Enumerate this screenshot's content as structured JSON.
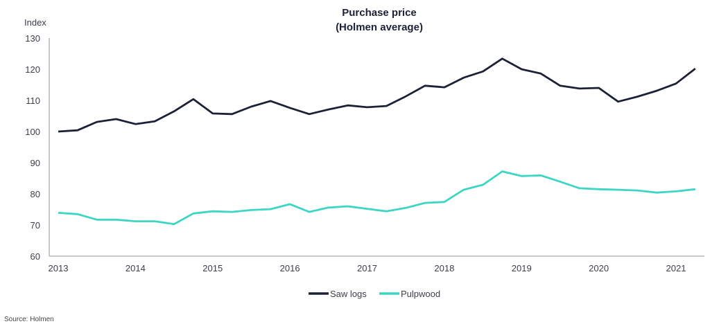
{
  "chart_data": {
    "type": "line",
    "title": "Purchase price",
    "subtitle": "(Holmen average)",
    "ylabel": "Index",
    "xlabel": "",
    "ylim": [
      60,
      130
    ],
    "yticks": [
      60,
      70,
      80,
      90,
      100,
      110,
      120,
      130
    ],
    "xlim": [
      2013,
      2021.5
    ],
    "xticks": [
      "2013",
      "2014",
      "2015",
      "2016",
      "2017",
      "2018",
      "2019",
      "2020",
      "2021"
    ],
    "x": [
      2013.0,
      2013.25,
      2013.5,
      2013.75,
      2014.0,
      2014.25,
      2014.5,
      2014.75,
      2015.0,
      2015.25,
      2015.5,
      2015.75,
      2016.0,
      2016.25,
      2016.5,
      2016.75,
      2017.0,
      2017.25,
      2017.5,
      2017.75,
      2018.0,
      2018.25,
      2018.5,
      2018.75,
      2019.0,
      2019.25,
      2019.5,
      2019.75,
      2020.0,
      2020.25,
      2020.5,
      2020.75,
      2021.0,
      2021.25
    ],
    "grid": false,
    "legend_position": "bottom-center",
    "series": [
      {
        "name": "Saw logs",
        "color": "#1c2136",
        "values": [
          100.0,
          100.4,
          103.1,
          104.0,
          102.4,
          103.3,
          106.5,
          110.4,
          105.8,
          105.6,
          108.0,
          109.8,
          107.6,
          105.6,
          107.1,
          108.4,
          107.8,
          108.2,
          111.3,
          114.7,
          114.2,
          117.3,
          119.3,
          123.4,
          120.0,
          118.6,
          114.7,
          113.8,
          114.0,
          109.6,
          111.2,
          113.1,
          115.4,
          120.2
        ]
      },
      {
        "name": "Pulpwood",
        "color": "#3dd6c4",
        "values": [
          73.9,
          73.5,
          71.7,
          71.7,
          71.2,
          71.2,
          70.3,
          73.7,
          74.4,
          74.2,
          74.8,
          75.1,
          76.7,
          74.2,
          75.6,
          76.0,
          75.2,
          74.4,
          75.5,
          77.1,
          77.4,
          81.3,
          82.9,
          87.2,
          85.7,
          85.9,
          83.9,
          81.8,
          81.5,
          81.3,
          81.1,
          80.4,
          80.8,
          81.5
        ]
      }
    ]
  },
  "source": "Source: Holmen"
}
